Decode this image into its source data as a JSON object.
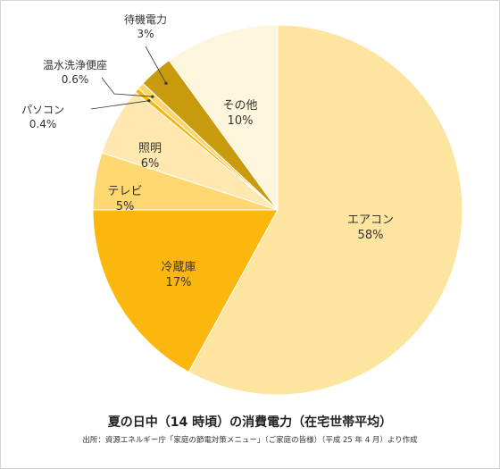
{
  "chart_data": {
    "type": "pie",
    "title": "夏の日中（14 時頃）の消費電力（在宅世帯平均）",
    "source": "出所：資源エネルギー庁「家庭の節電対策メニュー」（ご家庭の皆様）（平成 25 年 4 月）より作成",
    "start": "12 o'clock, clockwise",
    "slices": [
      {
        "name": "エアコン",
        "value": 58,
        "value_label": "58%",
        "color": "#fde49f"
      },
      {
        "name": "冷蔵庫",
        "value": 17,
        "value_label": "17%",
        "color": "#fbb70d"
      },
      {
        "name": "テレビ",
        "value": 5,
        "value_label": "5%",
        "color": "#fdd770"
      },
      {
        "name": "照明",
        "value": 6,
        "value_label": "6%",
        "color": "#fee8af"
      },
      {
        "name": "パソコン",
        "value": 0.4,
        "value_label": "0.4%",
        "color": "#f9b40a"
      },
      {
        "name": "温水洗浄便座",
        "value": 0.6,
        "value_label": "0.6%",
        "color": "#fdd570"
      },
      {
        "name": "待機電力",
        "value": 3,
        "value_label": "3%",
        "color": "#c99a0c"
      },
      {
        "name": "その他",
        "value": 10,
        "value_label": "10%",
        "color": "#fef6dc"
      }
    ]
  }
}
